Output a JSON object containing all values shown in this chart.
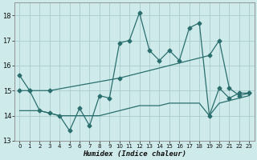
{
  "xlabel": "Humidex (Indice chaleur)",
  "xlim": [
    -0.5,
    23.5
  ],
  "ylim": [
    13,
    18.5
  ],
  "yticks": [
    13,
    14,
    15,
    16,
    17,
    18
  ],
  "xticks": [
    0,
    1,
    2,
    3,
    4,
    5,
    6,
    7,
    8,
    9,
    10,
    11,
    12,
    13,
    14,
    15,
    16,
    17,
    18,
    19,
    20,
    21,
    22,
    23
  ],
  "bg_color": "#ceeaea",
  "grid_color": "#aacccc",
  "line_color": "#2a6e6e",
  "line1_x": [
    0,
    1,
    2,
    3,
    4,
    5,
    6,
    7,
    8,
    9,
    10,
    11,
    12,
    13,
    14,
    15,
    16,
    17,
    18,
    19,
    20,
    21,
    22,
    23
  ],
  "line1_y": [
    15.6,
    15.0,
    14.2,
    14.1,
    14.0,
    13.4,
    14.3,
    13.6,
    14.8,
    14.7,
    16.9,
    17.0,
    18.1,
    16.6,
    16.2,
    16.6,
    16.2,
    17.5,
    17.7,
    14.0,
    15.1,
    14.7,
    14.9,
    14.9
  ],
  "line2_x": [
    0,
    1,
    3,
    10,
    19,
    20,
    21,
    22,
    23
  ],
  "line2_y": [
    15.0,
    15.0,
    15.0,
    15.5,
    16.4,
    17.0,
    15.1,
    14.8,
    14.9
  ],
  "line3_x": [
    0,
    1,
    2,
    3,
    4,
    5,
    6,
    7,
    8,
    9,
    10,
    11,
    12,
    13,
    14,
    15,
    16,
    17,
    18,
    19,
    20,
    21,
    22,
    23
  ],
  "line3_y": [
    14.2,
    14.2,
    14.2,
    14.1,
    14.0,
    14.0,
    14.0,
    14.0,
    14.0,
    14.1,
    14.2,
    14.3,
    14.4,
    14.4,
    14.4,
    14.5,
    14.5,
    14.5,
    14.5,
    14.0,
    14.5,
    14.6,
    14.7,
    14.8
  ]
}
